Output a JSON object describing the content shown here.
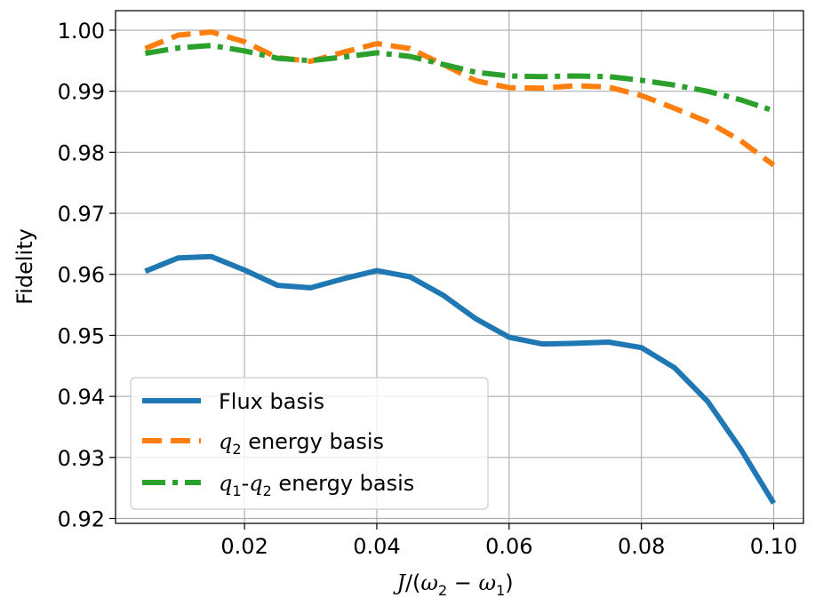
{
  "chart_data": {
    "type": "line",
    "title": "",
    "xlabel": "J/(ω2 − ω1)",
    "ylabel": "Fidelity",
    "xlim": [
      0.0005,
      0.1045
    ],
    "ylim": [
      0.9192,
      1.0032
    ],
    "grid": true,
    "legend_position": "lower-left",
    "xticks": [
      0.02,
      0.04,
      0.06,
      0.08,
      0.1
    ],
    "xtick_labels": [
      "0.02",
      "0.04",
      "0.06",
      "0.08",
      "0.10"
    ],
    "yticks": [
      0.92,
      0.93,
      0.94,
      0.95,
      0.96,
      0.97,
      0.98,
      0.99,
      1.0
    ],
    "ytick_labels": [
      "0.92",
      "0.93",
      "0.94",
      "0.95",
      "0.96",
      "0.97",
      "0.98",
      "0.99",
      "1.00"
    ],
    "x": [
      0.005,
      0.01,
      0.015,
      0.02,
      0.025,
      0.03,
      0.035,
      0.04,
      0.045,
      0.05,
      0.055,
      0.06,
      0.065,
      0.07,
      0.075,
      0.08,
      0.085,
      0.09,
      0.095,
      0.1
    ],
    "series": [
      {
        "name": "Flux basis",
        "color": "#1f77b4",
        "style": "solid",
        "values": [
          0.9605,
          0.9627,
          0.9629,
          0.9607,
          0.9582,
          0.9578,
          0.9593,
          0.9606,
          0.9596,
          0.9566,
          0.9527,
          0.9497,
          0.9486,
          0.9487,
          0.9489,
          0.948,
          0.9447,
          0.9392,
          0.9314,
          0.9225
        ]
      },
      {
        "name": "q2 energy basis",
        "color": "#ff7f0e",
        "style": "dashed",
        "values": [
          0.997,
          0.9992,
          0.9997,
          0.9981,
          0.9955,
          0.9949,
          0.9964,
          0.9978,
          0.997,
          0.9944,
          0.9917,
          0.9906,
          0.9905,
          0.9909,
          0.9907,
          0.9893,
          0.9872,
          0.985,
          0.9819,
          0.9779
        ]
      },
      {
        "name": "q1-q2 energy basis",
        "color": "#2ca02c",
        "style": "dashdot",
        "values": [
          0.9962,
          0.9971,
          0.9975,
          0.9966,
          0.9954,
          0.995,
          0.9956,
          0.9963,
          0.9957,
          0.9944,
          0.9931,
          0.9925,
          0.9924,
          0.9925,
          0.9924,
          0.9918,
          0.991,
          0.99,
          0.9886,
          0.9868
        ]
      }
    ],
    "legend": [
      {
        "text": "Flux basis"
      },
      {
        "var": "q",
        "sub": "2",
        "rest": " energy basis"
      },
      {
        "var1": "q",
        "sub1": "1",
        "dash": "-",
        "var2": "q",
        "sub2": "2",
        "rest": " energy basis"
      }
    ],
    "xlabel_parts": {
      "j": "J",
      "open": "/(",
      "w": "ω",
      "s2": "2",
      "minus": " − ",
      "s1": "1",
      "close": ")"
    }
  }
}
